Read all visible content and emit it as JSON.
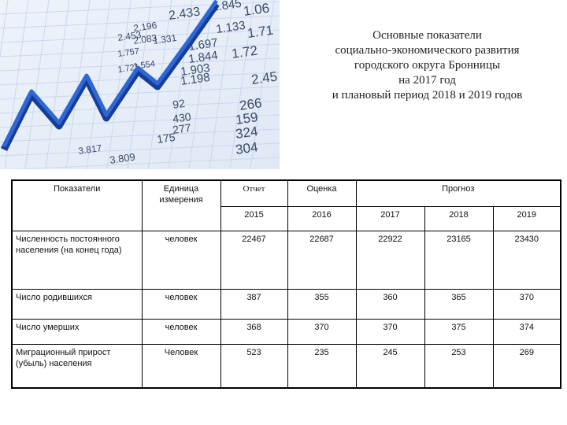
{
  "title_lines": [
    "Основные показатели",
    "социально-экономического развития",
    "городского округа Бронницы",
    "на 2017 год",
    "и плановый период 2018  и 2019 годов"
  ],
  "table": {
    "headers": {
      "indicator": "Показатели",
      "unit": "Единица измерения",
      "report": "Отчет",
      "estimate": "Оценка",
      "forecast": "Прогноз"
    },
    "years": [
      "2015",
      "2016",
      "2017",
      "2018",
      "2019"
    ],
    "rows": [
      {
        "label": "Численность постоянного населения (на конец года)",
        "unit": "человек",
        "values": [
          "22467",
          "22687",
          "22922",
          "23165",
          "23430"
        ]
      },
      {
        "label": "Число родившихся",
        "unit": "человек",
        "values": [
          "387",
          "355",
          "360",
          "365",
          "370"
        ]
      },
      {
        "label": "Число умерших",
        "unit": "человек",
        "values": [
          "368",
          "370",
          "370",
          "375",
          "374"
        ]
      },
      {
        "label": "Миграционный прирост (убыль) населения",
        "unit": "Человек",
        "values": [
          "523",
          "235",
          "245",
          "253",
          "269"
        ]
      }
    ]
  },
  "hero_image": {
    "description_icon": "growth-arrow-over-spreadsheet",
    "arrow_color": "#1f4fb8",
    "grid_color": "#c9d8ee",
    "numbers": [
      "2.433",
      "2.196",
      "2.453",
      "2.083",
      "1.331",
      "1.757",
      "1.554",
      "1.721",
      "1.198",
      "1.903",
      "1.844",
      "1.72",
      "1.697",
      "1.133",
      "1.845",
      "1.06",
      "1.71",
      "2.45",
      "92",
      "266",
      "430",
      "159",
      "277",
      "324",
      "175",
      "304",
      "3.809",
      "3.817"
    ]
  }
}
